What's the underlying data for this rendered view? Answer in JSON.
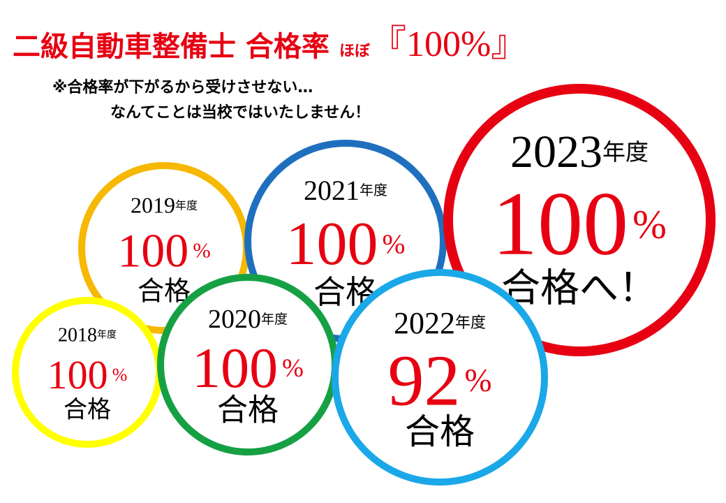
{
  "title": {
    "main": "二級自動車整備士 合格率",
    "prefix": "ほぼ",
    "highlight": "『100%』"
  },
  "notes": [
    "※合格率が下がるから受けさせない…",
    "なんてことは当校ではいたしません！"
  ],
  "circles": [
    {
      "year": "2019",
      "unit": "年度",
      "rate": "100",
      "percent": "%",
      "result": "合格"
    },
    {
      "year": "2018",
      "unit": "年度",
      "rate": "100",
      "percent": "%",
      "result": "合格"
    },
    {
      "year": "2021",
      "unit": "年度",
      "rate": "100",
      "percent": "%",
      "result": "合格"
    },
    {
      "year": "2020",
      "unit": "年度",
      "rate": "100",
      "percent": "%",
      "result": "合格"
    },
    {
      "year": "2023",
      "unit": "年度",
      "rate": "100",
      "percent": "%",
      "result": "合格へ！"
    },
    {
      "year": "2022",
      "unit": "年度",
      "rate": "92",
      "percent": "%",
      "result": "合格"
    }
  ]
}
